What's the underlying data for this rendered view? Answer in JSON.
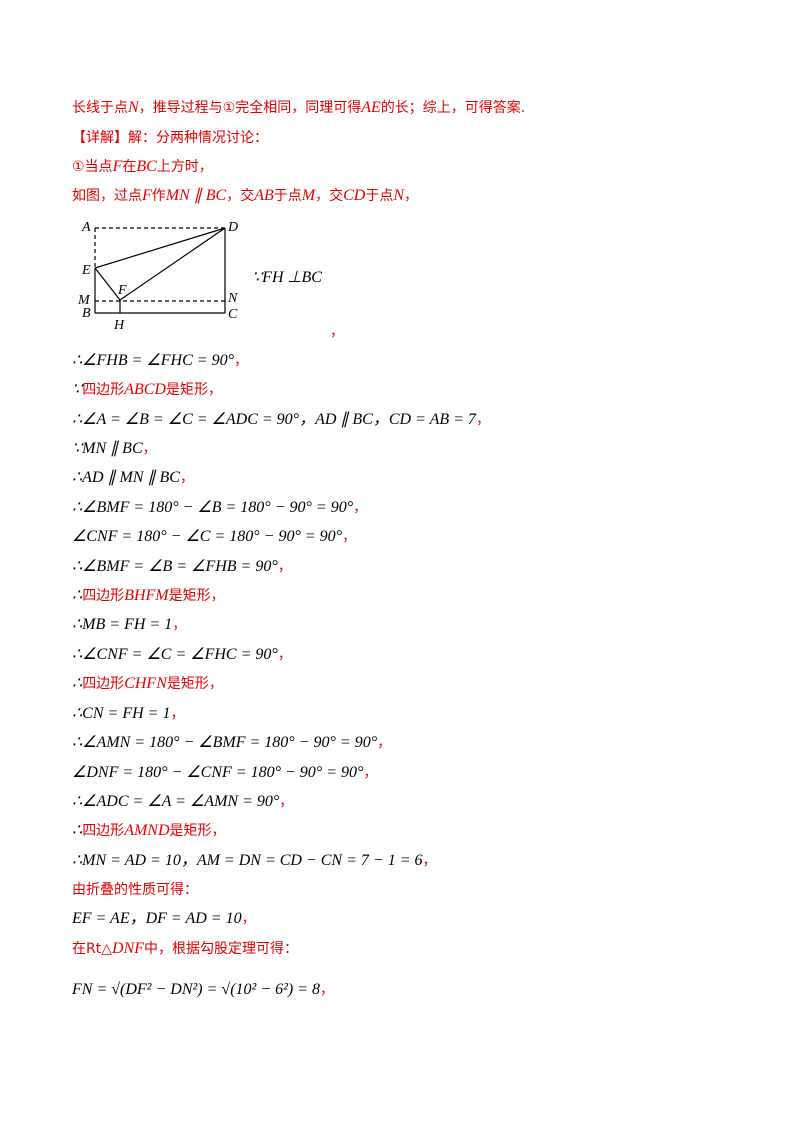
{
  "lines": [
    [
      {
        "t": "长线于点",
        "s": "red"
      },
      {
        "t": "N",
        "s": "red-math"
      },
      {
        "t": "，推导过程与①完全相同，同理可得",
        "s": "red"
      },
      {
        "t": "AE",
        "s": "red-math"
      },
      {
        "t": "的长；综上，可得答案.",
        "s": "red"
      }
    ],
    [
      {
        "t": "【详解】解：分两种情况讨论：",
        "s": "red"
      }
    ],
    [
      {
        "t": "①当点",
        "s": "red"
      },
      {
        "t": "F",
        "s": "red-math"
      },
      {
        "t": "在",
        "s": "red"
      },
      {
        "t": "BC",
        "s": "red-math"
      },
      {
        "t": "上方时，",
        "s": "red"
      }
    ],
    [
      {
        "t": "如图，过点",
        "s": "red"
      },
      {
        "t": "F",
        "s": "red-math"
      },
      {
        "t": "作",
        "s": "red"
      },
      {
        "t": "MN ∥ BC",
        "s": "red-math"
      },
      {
        "t": "，交",
        "s": "red"
      },
      {
        "t": "AB",
        "s": "red-math"
      },
      {
        "t": "于点",
        "s": "red"
      },
      {
        "t": "M",
        "s": "red-math"
      },
      {
        "t": "，交",
        "s": "red"
      },
      {
        "t": "CD",
        "s": "red-math"
      },
      {
        "t": "于点",
        "s": "red"
      },
      {
        "t": "N",
        "s": "red-math"
      },
      {
        "t": "，",
        "s": "red"
      }
    ],
    [
      {
        "t": "∴∠FHB = ∠FHC = 90°",
        "s": "math"
      },
      {
        "t": "，",
        "s": "red"
      }
    ],
    [
      {
        "t": "∵",
        "s": "math"
      },
      {
        "t": "四边形",
        "s": "red"
      },
      {
        "t": "ABCD",
        "s": "red-math"
      },
      {
        "t": "是矩形，",
        "s": "red"
      }
    ],
    [
      {
        "t": "∴∠A = ∠B = ∠C = ∠ADC = 90°，AD ∥ BC，CD = AB = 7",
        "s": "math"
      },
      {
        "t": "，",
        "s": "red"
      }
    ],
    [
      {
        "t": "∵MN ∥ BC",
        "s": "math"
      },
      {
        "t": "，",
        "s": "red"
      }
    ],
    [
      {
        "t": "∴AD ∥ MN ∥ BC",
        "s": "math"
      },
      {
        "t": "，",
        "s": "red"
      }
    ],
    [
      {
        "t": "∴∠BMF = 180° − ∠B = 180° − 90° = 90°",
        "s": "math"
      },
      {
        "t": "，",
        "s": "red"
      }
    ],
    [
      {
        "t": "∠CNF = 180° − ∠C = 180° − 90° = 90°",
        "s": "math"
      },
      {
        "t": "，",
        "s": "red"
      }
    ],
    [
      {
        "t": "∴∠BMF = ∠B = ∠FHB = 90°",
        "s": "math"
      },
      {
        "t": "，",
        "s": "red"
      }
    ],
    [
      {
        "t": "∴",
        "s": "math"
      },
      {
        "t": "四边形",
        "s": "red"
      },
      {
        "t": "BHFM",
        "s": "red-math"
      },
      {
        "t": "是矩形，",
        "s": "red"
      }
    ],
    [
      {
        "t": "∴MB = FH = 1",
        "s": "math"
      },
      {
        "t": "，",
        "s": "red"
      }
    ],
    [
      {
        "t": "∴∠CNF = ∠C = ∠FHC = 90°",
        "s": "math"
      },
      {
        "t": "，",
        "s": "red"
      }
    ],
    [
      {
        "t": "∴",
        "s": "math"
      },
      {
        "t": "四边形",
        "s": "red"
      },
      {
        "t": "CHFN",
        "s": "red-math"
      },
      {
        "t": "是矩形，",
        "s": "red"
      }
    ],
    [
      {
        "t": "∴CN = FH = 1",
        "s": "math"
      },
      {
        "t": "，",
        "s": "red"
      }
    ],
    [
      {
        "t": "∴∠AMN = 180° − ∠BMF = 180° − 90° = 90°",
        "s": "math"
      },
      {
        "t": "，",
        "s": "red"
      }
    ],
    [
      {
        "t": "∠DNF = 180° − ∠CNF = 180° − 90° = 90°",
        "s": "math"
      },
      {
        "t": "，",
        "s": "red"
      }
    ],
    [
      {
        "t": "∴∠ADC = ∠A = ∠AMN = 90°",
        "s": "math"
      },
      {
        "t": "，",
        "s": "red"
      }
    ],
    [
      {
        "t": "∴",
        "s": "math"
      },
      {
        "t": "四边形",
        "s": "red"
      },
      {
        "t": "AMND",
        "s": "red-math"
      },
      {
        "t": "是矩形，",
        "s": "red"
      }
    ],
    [
      {
        "t": "∴MN = AD = 10，AM = DN = CD − CN = 7 − 1 = 6",
        "s": "math"
      },
      {
        "t": "，",
        "s": "red"
      }
    ],
    [
      {
        "t": "由折叠的性质可得：",
        "s": "red"
      }
    ],
    [
      {
        "t": "EF = AE，DF = AD = 10",
        "s": "math"
      },
      {
        "t": "，",
        "s": "red"
      }
    ],
    [
      {
        "t": "在Rt△",
        "s": "red"
      },
      {
        "t": "DNF",
        "s": "red-math"
      },
      {
        "t": "中，根据勾股定理可得：",
        "s": "red"
      }
    ],
    [
      {
        "t": "FN = √(DF² − DN²) = √(10² − 6²) = 8",
        "s": "math"
      },
      {
        "t": "，",
        "s": "red"
      }
    ]
  ],
  "figure": {
    "labels": [
      "A",
      "D",
      "E",
      "M",
      "F",
      "N",
      "B",
      "H",
      "C"
    ],
    "note": "∵FH ⊥BC",
    "comma": "，"
  }
}
